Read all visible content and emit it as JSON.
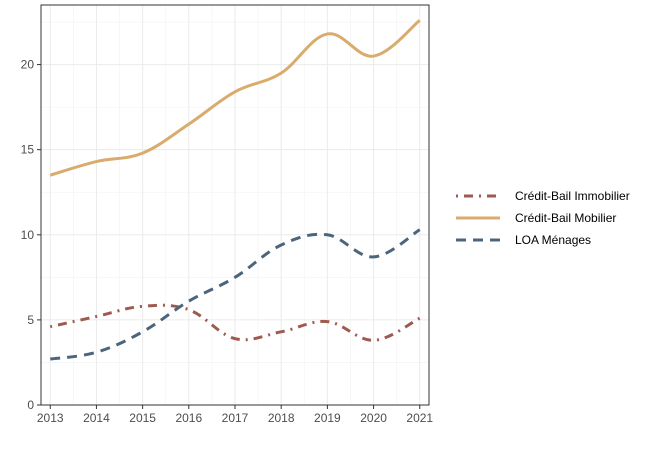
{
  "chart_data": {
    "type": "line",
    "title": "",
    "xlabel": "",
    "ylabel": "",
    "x": [
      2013,
      2014,
      2015,
      2016,
      2017,
      2018,
      2019,
      2020,
      2021
    ],
    "xlim": [
      2012.8,
      2021.2
    ],
    "ylim": [
      0,
      23.5
    ],
    "yticks": [
      0,
      5,
      10,
      15,
      20
    ],
    "grid": true,
    "legend_position": "right",
    "series": [
      {
        "name": "Crédit-Bail Immobilier",
        "values": [
          4.6,
          5.2,
          5.8,
          5.6,
          3.9,
          4.3,
          4.9,
          3.8,
          5.1
        ],
        "color": "#9e5a4f",
        "dash": "dot-dash"
      },
      {
        "name": "Crédit-Bail Mobilier",
        "values": [
          13.5,
          14.3,
          14.8,
          16.5,
          18.4,
          19.5,
          21.8,
          20.5,
          22.6
        ],
        "color": "#d9ac6d",
        "dash": "solid"
      },
      {
        "name": "LOA Ménages",
        "values": [
          2.7,
          3.1,
          4.3,
          6.1,
          7.5,
          9.4,
          10.0,
          8.7,
          10.3
        ],
        "color": "#4c657d",
        "dash": "long-dash"
      }
    ]
  }
}
